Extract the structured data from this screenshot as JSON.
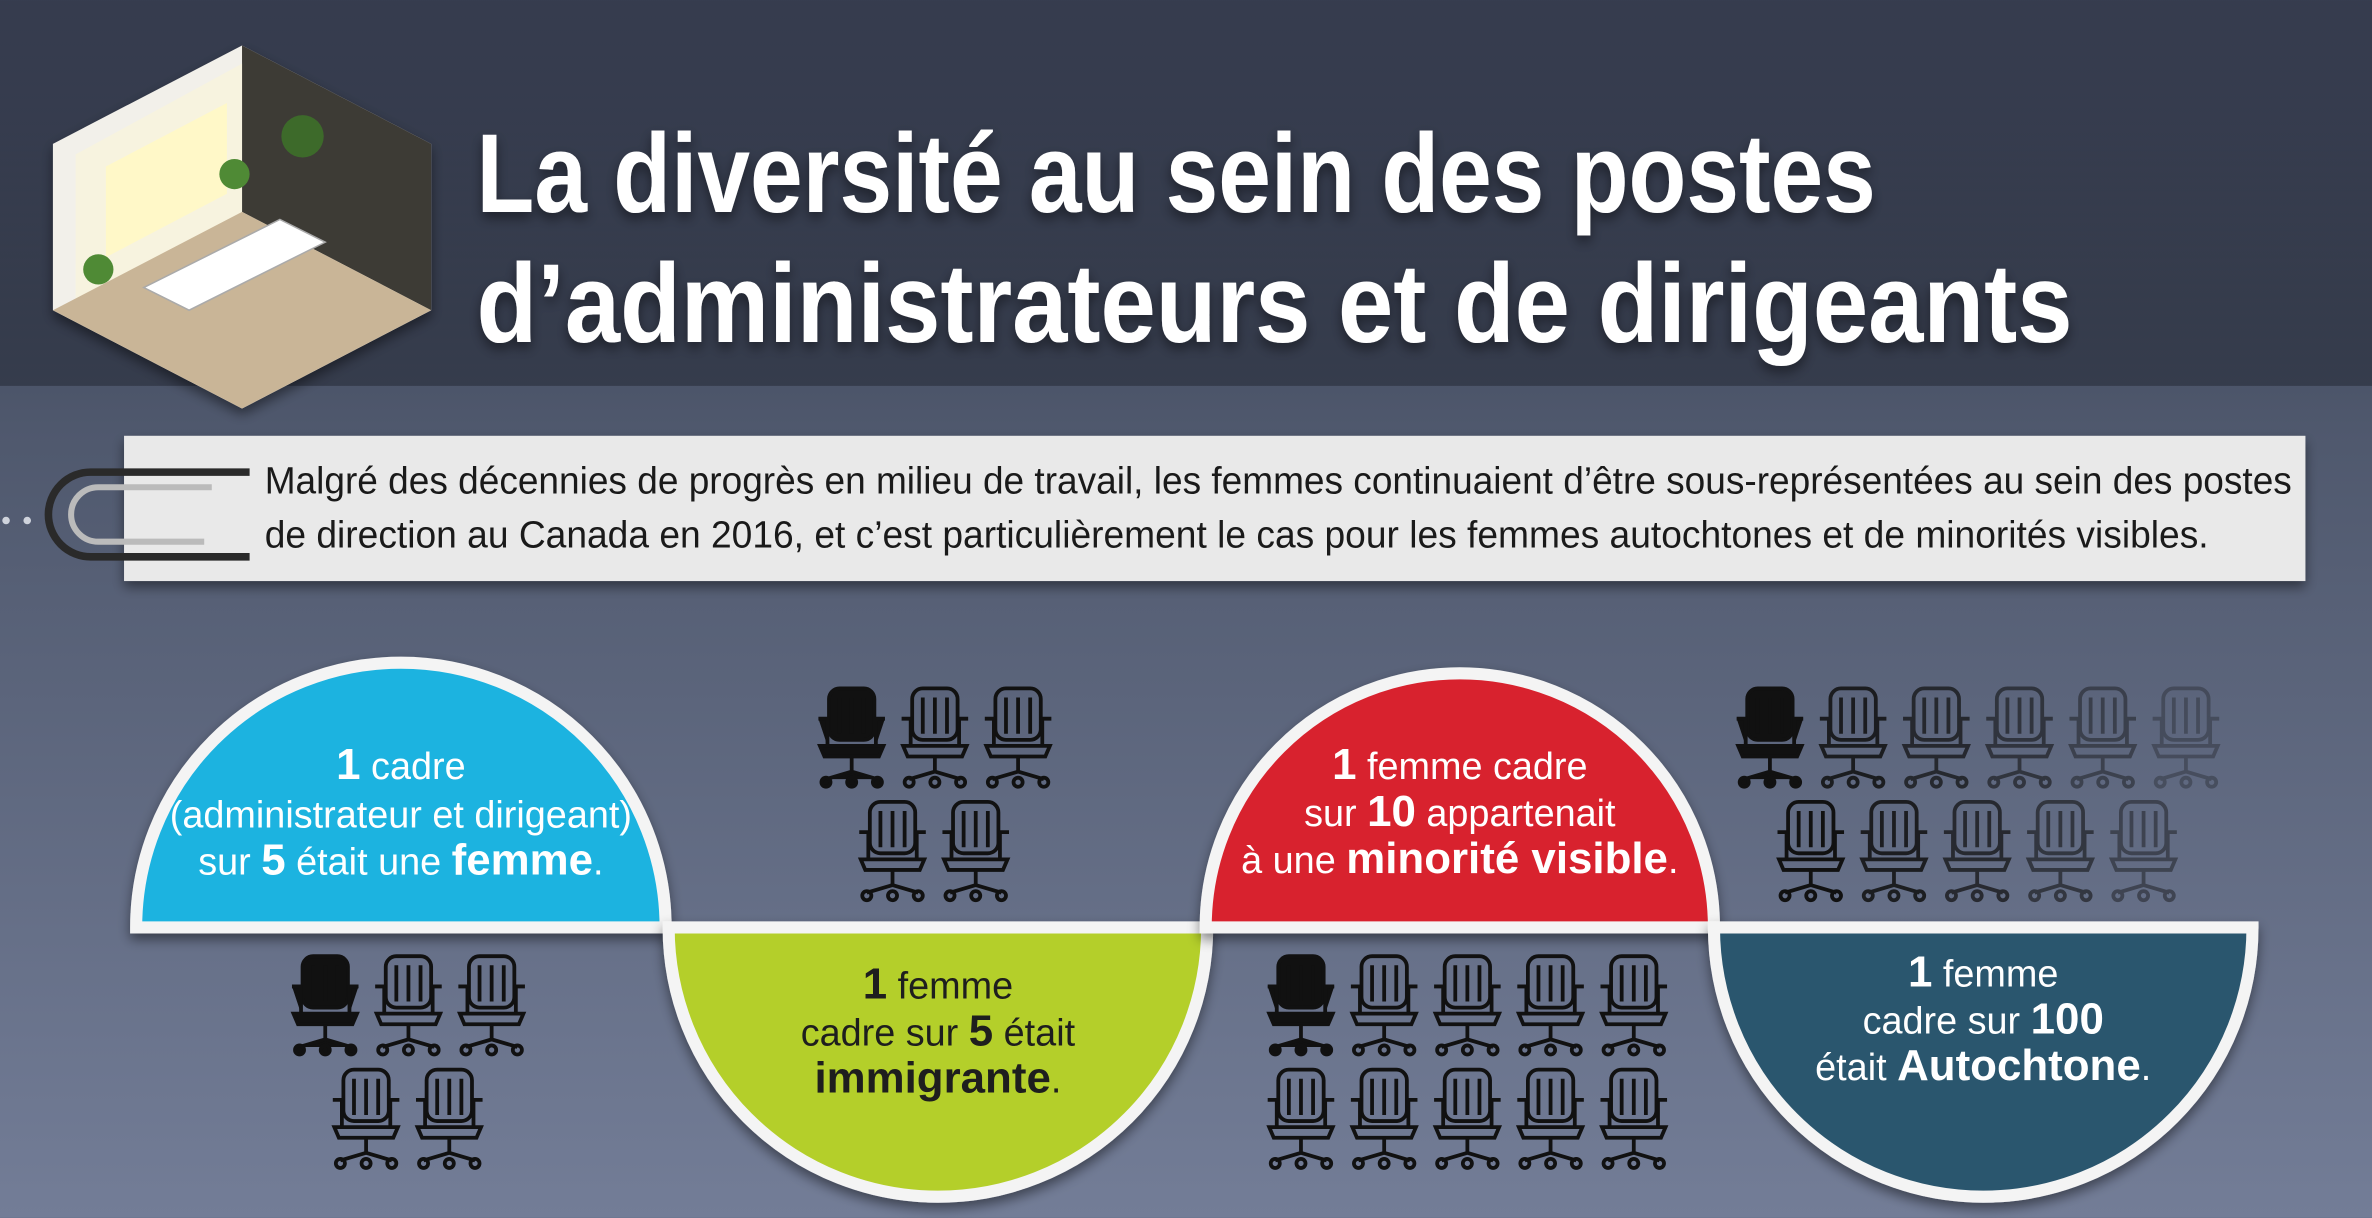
{
  "header": {
    "title_lines": [
      "La diversité au sein des postes",
      "d’administrateurs et de dirigeants"
    ]
  },
  "intro": {
    "lines": [
      "Malgré des décennies de progrès en milieu de travail, les femmes continuaient d’être sous-représentées au sein des postes",
      "de direction au Canada en 2016, et c’est particulièrement le cas pour les femmes autochtones et de minorités visibles."
    ]
  },
  "cards": [
    {
      "color": "#1bb3e0",
      "text_color": "#ffffff",
      "lines": [
        [
          {
            "text": "1",
            "bold": true
          },
          {
            "text": " cadre"
          }
        ],
        [
          {
            "text": "(administrateur et dirigeant)"
          }
        ],
        [
          {
            "text": "sur "
          },
          {
            "text": "5",
            "bold": true
          },
          {
            "text": " était une "
          },
          {
            "text": "femme",
            "bold": true
          },
          {
            "text": "."
          }
        ]
      ]
    },
    {
      "color": "#b4cf2b",
      "text_color": "#1e1e1e",
      "lines": [
        [
          {
            "text": "1",
            "bold": true
          },
          {
            "text": " femme"
          }
        ],
        [
          {
            "text": "cadre sur "
          },
          {
            "text": "5",
            "bold": true
          },
          {
            "text": " était"
          }
        ],
        [
          {
            "text": "immigrante",
            "bold": true
          },
          {
            "text": "."
          }
        ]
      ]
    },
    {
      "color": "#d8232e",
      "text_color": "#ffffff",
      "lines": [
        [
          {
            "text": "1",
            "bold": true
          },
          {
            "text": " femme cadre"
          }
        ],
        [
          {
            "text": "sur "
          },
          {
            "text": "10",
            "bold": true
          },
          {
            "text": " appartenait"
          }
        ],
        [
          {
            "text": "à une "
          },
          {
            "text": "minorité visible",
            "bold": true
          },
          {
            "text": "."
          }
        ]
      ]
    },
    {
      "color": "#2c566e",
      "text_color": "#ffffff",
      "lines": [
        [
          {
            "text": "1",
            "bold": true
          },
          {
            "text": " femme"
          }
        ],
        [
          {
            "text": "cadre sur "
          },
          {
            "text": "100",
            "bold": true
          }
        ],
        [
          {
            "text": "était "
          },
          {
            "text": "Autochtone",
            "bold": true
          },
          {
            "text": "."
          }
        ]
      ]
    }
  ]
}
